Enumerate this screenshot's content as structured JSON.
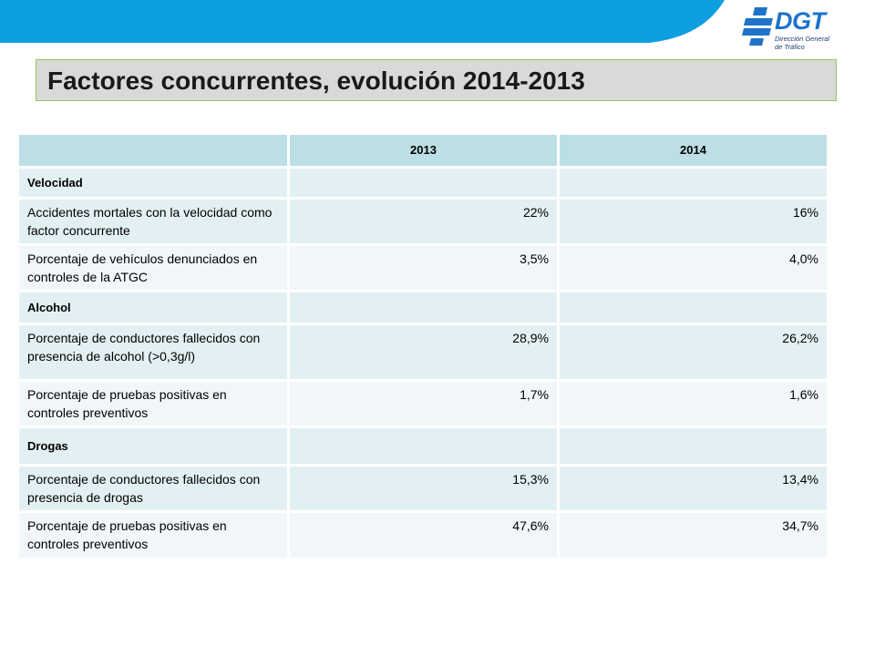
{
  "logo": {
    "name": "DGT",
    "subtitle_line1": "Dirección General",
    "subtitle_line2": "de Tráfico"
  },
  "title": "Factores concurrentes, evolución 2014-2013",
  "colors": {
    "banner": "#0d9fe0",
    "title_background": "#d9d9d9",
    "title_border": "#92c85e",
    "header_fill": "#bcdfe5",
    "row_fill": "#e3f0f3",
    "row_alt_fill": "#f1f7f9",
    "logo_blue": "#1e73c8"
  },
  "table": {
    "headers": [
      "",
      "2013",
      "2014"
    ],
    "rows": [
      {
        "label": "Velocidad",
        "v2013": "",
        "v2014": "",
        "category": true
      },
      {
        "label": "Accidentes mortales con la velocidad como factor concurrente",
        "v2013": "22%",
        "v2014": "16%"
      },
      {
        "label": "Porcentaje de vehículos denunciados en controles de la ATGC",
        "v2013": "3,5%",
        "v2014": "4,0%"
      },
      {
        "label": "Alcohol",
        "v2013": "",
        "v2014": "",
        "category": true
      },
      {
        "label": "Porcentaje de conductores fallecidos con presencia de alcohol (>0,3g/l)",
        "v2013": "28,9%",
        "v2014": "26,2%"
      },
      {
        "label": "Porcentaje de pruebas positivas en controles preventivos",
        "v2013": "1,7%",
        "v2014": "1,6%"
      },
      {
        "label": "Drogas",
        "v2013": "",
        "v2014": "",
        "category": true
      },
      {
        "label": "Porcentaje de conductores fallecidos con presencia de drogas",
        "v2013": "15,3%",
        "v2014": "13,4%"
      },
      {
        "label": "Porcentaje de pruebas positivas en controles preventivos",
        "v2013": "47,6%",
        "v2014": "34,7%"
      }
    ]
  }
}
